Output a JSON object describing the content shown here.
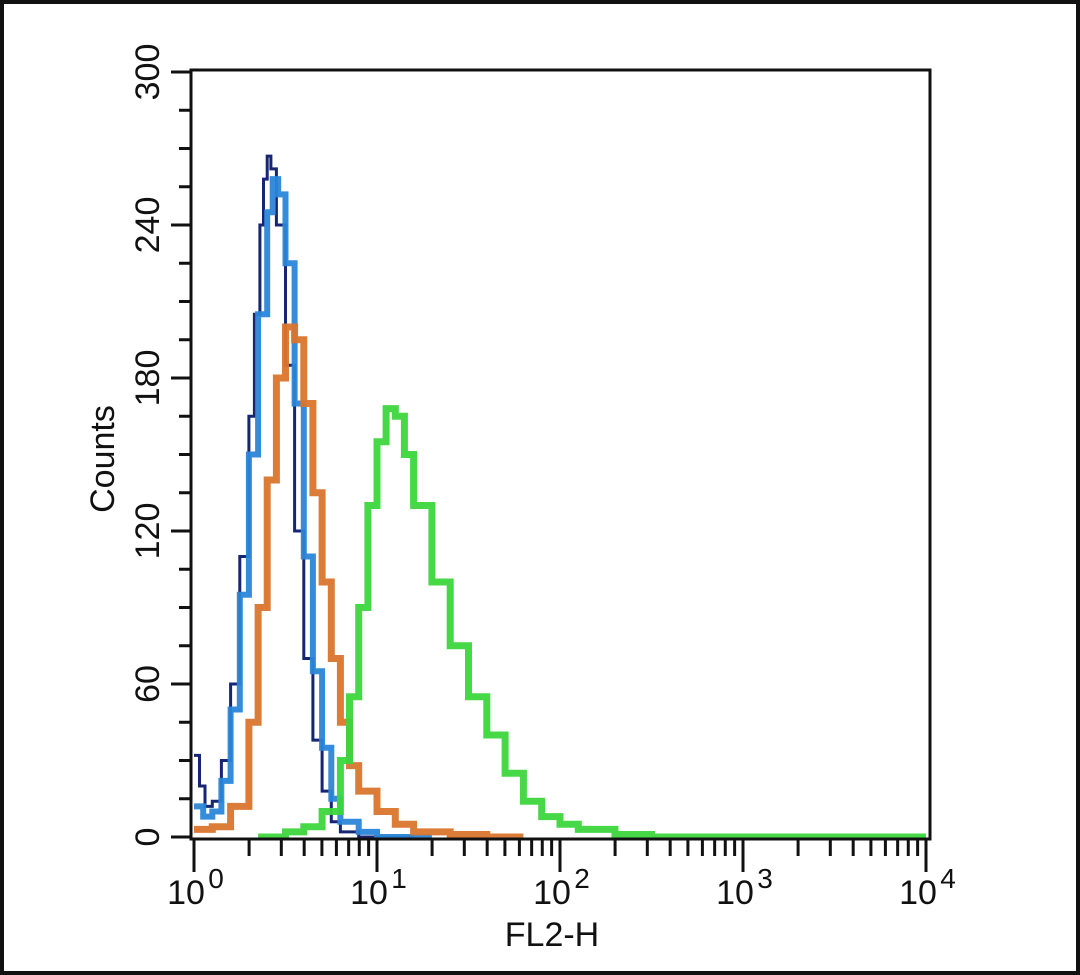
{
  "chart_data": {
    "type": "line",
    "subtype": "flow-cytometry-histogram",
    "title": "",
    "xlabel": "FL2-H",
    "ylabel": "Counts",
    "xscale": "log",
    "xlim": [
      1,
      10000
    ],
    "ylim": [
      0,
      300
    ],
    "x_ticks": [
      {
        "base": "10",
        "exp": "0",
        "value": 1
      },
      {
        "base": "10",
        "exp": "1",
        "value": 10
      },
      {
        "base": "10",
        "exp": "2",
        "value": 100
      },
      {
        "base": "10",
        "exp": "3",
        "value": 1000
      },
      {
        "base": "10",
        "exp": "4",
        "value": 10000
      }
    ],
    "y_ticks": [
      "0",
      "60",
      "120",
      "180",
      "240",
      "300"
    ],
    "grid": false,
    "legend": null,
    "series": [
      {
        "name": "navy-curve",
        "color": "#0a1a6e",
        "width": 3,
        "points_log10x_count": [
          [
            0,
            32
          ],
          [
            0.03,
            20
          ],
          [
            0.06,
            12
          ],
          [
            0.1,
            14
          ],
          [
            0.15,
            30
          ],
          [
            0.2,
            60
          ],
          [
            0.25,
            110
          ],
          [
            0.3,
            165
          ],
          [
            0.33,
            205
          ],
          [
            0.36,
            240
          ],
          [
            0.38,
            258
          ],
          [
            0.4,
            267
          ],
          [
            0.42,
            262
          ],
          [
            0.45,
            240
          ],
          [
            0.5,
            185
          ],
          [
            0.55,
            120
          ],
          [
            0.6,
            70
          ],
          [
            0.65,
            38
          ],
          [
            0.7,
            18
          ],
          [
            0.75,
            6
          ],
          [
            0.8,
            2
          ],
          [
            0.9,
            0
          ],
          [
            1.2,
            0
          ]
        ]
      },
      {
        "name": "blue-curve",
        "color": "#2a86d8",
        "width": 6,
        "points_log10x_count": [
          [
            0,
            12
          ],
          [
            0.05,
            8
          ],
          [
            0.1,
            10
          ],
          [
            0.15,
            22
          ],
          [
            0.2,
            50
          ],
          [
            0.25,
            95
          ],
          [
            0.3,
            150
          ],
          [
            0.35,
            205
          ],
          [
            0.4,
            245
          ],
          [
            0.43,
            258
          ],
          [
            0.46,
            252
          ],
          [
            0.5,
            225
          ],
          [
            0.55,
            170
          ],
          [
            0.6,
            110
          ],
          [
            0.65,
            65
          ],
          [
            0.7,
            35
          ],
          [
            0.75,
            15
          ],
          [
            0.8,
            6
          ],
          [
            0.9,
            2
          ],
          [
            1.0,
            0
          ],
          [
            1.3,
            0
          ]
        ]
      },
      {
        "name": "orange-curve",
        "color": "#d9762e",
        "width": 7,
        "points_log10x_count": [
          [
            0,
            3
          ],
          [
            0.1,
            4
          ],
          [
            0.2,
            12
          ],
          [
            0.3,
            45
          ],
          [
            0.35,
            90
          ],
          [
            0.4,
            140
          ],
          [
            0.45,
            180
          ],
          [
            0.5,
            200
          ],
          [
            0.55,
            195
          ],
          [
            0.6,
            170
          ],
          [
            0.65,
            135
          ],
          [
            0.7,
            100
          ],
          [
            0.75,
            70
          ],
          [
            0.8,
            45
          ],
          [
            0.85,
            28
          ],
          [
            0.9,
            18
          ],
          [
            1.0,
            10
          ],
          [
            1.1,
            5
          ],
          [
            1.2,
            2
          ],
          [
            1.4,
            1
          ],
          [
            1.6,
            0
          ],
          [
            1.8,
            0
          ]
        ]
      },
      {
        "name": "green-curve",
        "color": "#3dd63d",
        "width": 7,
        "points_log10x_count": [
          [
            0.35,
            0
          ],
          [
            0.5,
            2
          ],
          [
            0.6,
            4
          ],
          [
            0.7,
            10
          ],
          [
            0.8,
            30
          ],
          [
            0.85,
            55
          ],
          [
            0.9,
            90
          ],
          [
            0.95,
            130
          ],
          [
            1.0,
            155
          ],
          [
            1.05,
            168
          ],
          [
            1.1,
            165
          ],
          [
            1.15,
            150
          ],
          [
            1.2,
            130
          ],
          [
            1.3,
            100
          ],
          [
            1.4,
            75
          ],
          [
            1.5,
            55
          ],
          [
            1.6,
            40
          ],
          [
            1.7,
            25
          ],
          [
            1.8,
            14
          ],
          [
            1.9,
            8
          ],
          [
            2.0,
            5
          ],
          [
            2.1,
            3
          ],
          [
            2.3,
            1
          ],
          [
            2.5,
            0
          ],
          [
            4.0,
            0
          ]
        ]
      }
    ]
  }
}
